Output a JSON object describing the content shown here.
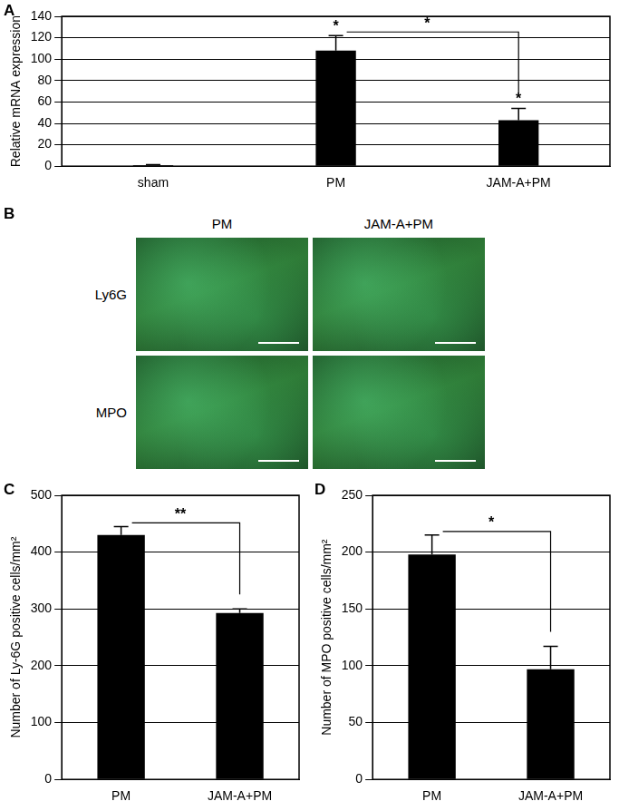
{
  "chart_data": [
    {
      "panel": "A",
      "type": "bar",
      "categories": [
        "sham",
        "PM",
        "JAM-A+PM"
      ],
      "values": [
        1,
        108,
        43
      ],
      "errors": [
        0.5,
        14,
        11
      ],
      "color": "#000000",
      "ylabel": "Relative mRNA expression",
      "ylim": [
        0,
        140
      ],
      "yticks": [
        0,
        20,
        40,
        60,
        80,
        100,
        120,
        140
      ],
      "grid": true,
      "bar_marks": [
        null,
        "*",
        "*"
      ],
      "brackets": [
        {
          "from": 1,
          "to": 2,
          "label": "*"
        }
      ]
    },
    {
      "panel": "C",
      "type": "bar",
      "categories": [
        "PM",
        "JAM-A+PM"
      ],
      "values": [
        430,
        293
      ],
      "errors": [
        15,
        7
      ],
      "color": "#000000",
      "ylabel": "Number of Ly-6G positive cells/mm²",
      "ylim": [
        0,
        500
      ],
      "yticks": [
        0,
        100,
        200,
        300,
        400,
        500
      ],
      "grid": true,
      "brackets": [
        {
          "from": 0,
          "to": 1,
          "label": "**"
        }
      ]
    },
    {
      "panel": "D",
      "type": "bar",
      "categories": [
        "PM",
        "JAM-A+PM"
      ],
      "values": [
        198,
        97
      ],
      "errors": [
        17,
        20
      ],
      "color": "#000000",
      "ylabel": "Number of MPO positive cells/mm²",
      "ylim": [
        0,
        250
      ],
      "yticks": [
        0,
        50,
        100,
        150,
        200,
        250
      ],
      "grid": true,
      "brackets": [
        {
          "from": 0,
          "to": 1,
          "label": "*"
        }
      ]
    }
  ],
  "images": {
    "panel": "B",
    "columns": [
      "PM",
      "JAM-A+PM"
    ],
    "rows": [
      "Ly6G",
      "MPO"
    ]
  }
}
